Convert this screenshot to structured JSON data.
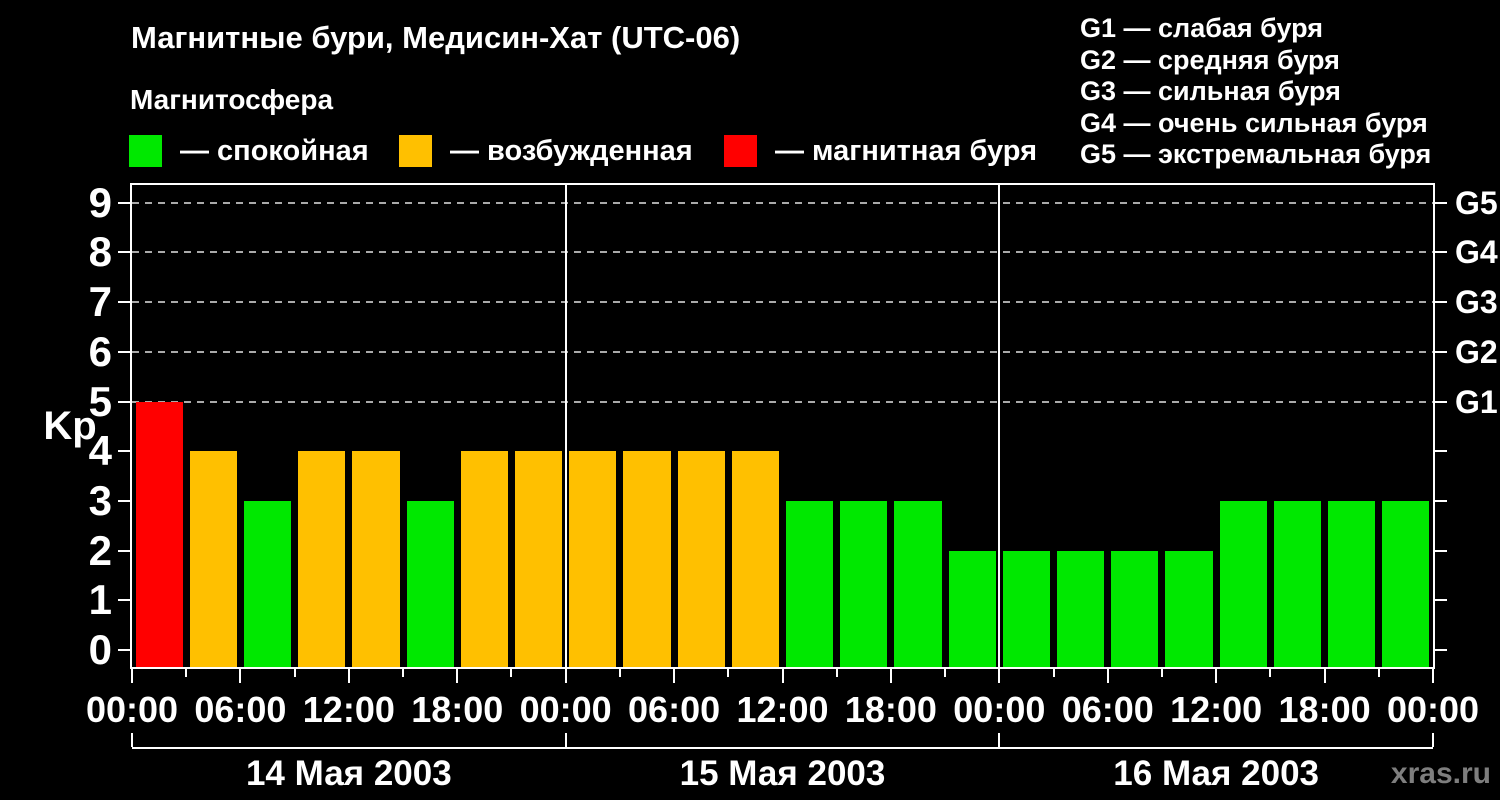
{
  "header": {
    "title": "Магнитные бури, Медисин-Хат (UTC-06)",
    "subtitle": "Магнитосфера"
  },
  "legend": {
    "items": [
      {
        "name": "quiet",
        "label": "— спокойная",
        "color": "#00e800"
      },
      {
        "name": "unsettled",
        "label": "— возбужденная",
        "color": "#ffc000"
      },
      {
        "name": "storm",
        "label": "— магнитная буря",
        "color": "#ff0000"
      }
    ]
  },
  "storm_scale_legend": [
    "G1 — слабая буря",
    "G2 — средняя буря",
    "G3 — сильная буря",
    "G4 — очень сильная буря",
    "G5 — экстремальная буря"
  ],
  "watermark": "xras.ru",
  "colors": {
    "quiet": "#00e800",
    "unsettled": "#ffc000",
    "storm": "#ff0000",
    "grid": "#aaaaaa",
    "axis": "#ffffff",
    "background": "#000000",
    "watermark": "#7e7e7e"
  },
  "chart_data": {
    "type": "bar",
    "title": "Магнитные бури, Медисин-Хат (UTC-06)",
    "ylabel": "Kp",
    "ylim": [
      0,
      9
    ],
    "y_ticks": [
      0,
      1,
      2,
      3,
      4,
      5,
      6,
      7,
      8,
      9
    ],
    "gridlines_at": [
      5,
      6,
      7,
      8,
      9
    ],
    "grid": "dashed horizontal at storm levels only",
    "right_axis": [
      {
        "kp": 5,
        "label": "G1"
      },
      {
        "kp": 6,
        "label": "G2"
      },
      {
        "kp": 7,
        "label": "G3"
      },
      {
        "kp": 8,
        "label": "G4"
      },
      {
        "kp": 9,
        "label": "G5"
      }
    ],
    "bar_hours": 3,
    "x_minor_tick_hours": 3,
    "x_label_step_hours": 6,
    "x_labels": [
      "00:00",
      "06:00",
      "12:00",
      "18:00",
      "00:00",
      "06:00",
      "12:00",
      "18:00",
      "00:00",
      "06:00",
      "12:00",
      "18:00",
      "00:00"
    ],
    "days": [
      {
        "date": "14 Мая 2003",
        "kp": [
          5,
          4,
          3,
          4,
          4,
          3,
          4,
          4
        ],
        "states": [
          "storm",
          "unsettled",
          "quiet",
          "unsettled",
          "unsettled",
          "quiet",
          "unsettled",
          "unsettled"
        ]
      },
      {
        "date": "15 Мая 2003",
        "kp": [
          4,
          4,
          4,
          4,
          3,
          3,
          3,
          2
        ],
        "states": [
          "unsettled",
          "unsettled",
          "unsettled",
          "unsettled",
          "quiet",
          "quiet",
          "quiet",
          "quiet"
        ]
      },
      {
        "date": "16 Мая 2003",
        "kp": [
          2,
          2,
          2,
          2,
          3,
          3,
          3,
          3
        ],
        "states": [
          "quiet",
          "quiet",
          "quiet",
          "quiet",
          "quiet",
          "quiet",
          "quiet",
          "quiet"
        ]
      }
    ]
  }
}
